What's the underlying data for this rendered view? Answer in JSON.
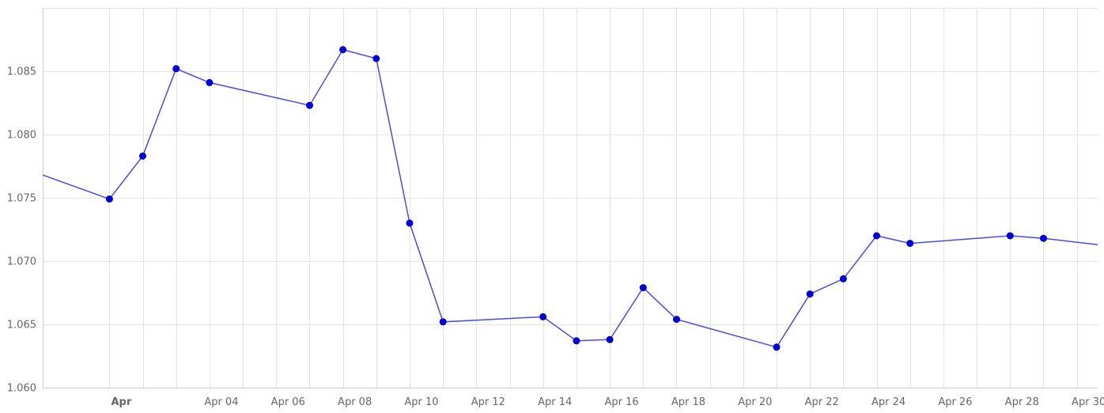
{
  "chart_data": {
    "type": "line",
    "title": "",
    "xlabel": "",
    "ylabel": "",
    "grid": true,
    "legend": "none",
    "xlim": [
      "2024-03-30",
      "2024-04-30T15:00:00"
    ],
    "ylim": [
      1.06,
      1.09
    ],
    "y_ticks": [
      1.06,
      1.065,
      1.07,
      1.075,
      1.08,
      1.085
    ],
    "y_tick_labels": [
      "1.060",
      "1.065",
      "1.070",
      "1.075",
      "1.080",
      "1.085"
    ],
    "x_ticks": [
      "2024-04-01",
      "2024-04-04",
      "2024-04-06",
      "2024-04-08",
      "2024-04-10",
      "2024-04-12",
      "2024-04-14",
      "2024-04-16",
      "2024-04-18",
      "2024-04-20",
      "2024-04-22",
      "2024-04-24",
      "2024-04-26",
      "2024-04-28",
      "2024-04-30"
    ],
    "x_tick_labels": [
      "Apr",
      "Apr 04",
      "Apr 06",
      "Apr 08",
      "Apr 10",
      "Apr 12",
      "Apr 14",
      "Apr 16",
      "Apr 18",
      "Apr 20",
      "Apr 22",
      "Apr 24",
      "Apr 26",
      "Apr 28",
      "Apr 30"
    ],
    "x_minor_grid": [
      "2024-04-02",
      "2024-04-03",
      "2024-04-05",
      "2024-04-07",
      "2024-04-09",
      "2024-04-11",
      "2024-04-13",
      "2024-04-15",
      "2024-04-17",
      "2024-04-19",
      "2024-04-21",
      "2024-04-23",
      "2024-04-25",
      "2024-04-27",
      "2024-04-29"
    ],
    "bold_tick_labels": [
      "Apr"
    ],
    "line_start": [
      "2024-03-30",
      1.0768
    ],
    "line_end": [
      "2024-04-30T15:00:00",
      1.0713
    ],
    "series": [
      {
        "color": "#0000dd",
        "line_color": "#4a4af0",
        "x": [
          "2024-04-01",
          "2024-04-02",
          "2024-04-03",
          "2024-04-04",
          "2024-04-07",
          "2024-04-08",
          "2024-04-09",
          "2024-04-10",
          "2024-04-11",
          "2024-04-14",
          "2024-04-15",
          "2024-04-16",
          "2024-04-17",
          "2024-04-18",
          "2024-04-21",
          "2024-04-22",
          "2024-04-23",
          "2024-04-24",
          "2024-04-25",
          "2024-04-28",
          "2024-04-29"
        ],
        "y": [
          1.0749,
          1.0783,
          1.0852,
          1.0841,
          1.0823,
          1.0867,
          1.086,
          1.073,
          1.0652,
          1.0656,
          1.0637,
          1.0638,
          1.0679,
          1.0654,
          1.0632,
          1.0674,
          1.0686,
          1.072,
          1.0714,
          1.072,
          1.0718
        ]
      }
    ]
  }
}
